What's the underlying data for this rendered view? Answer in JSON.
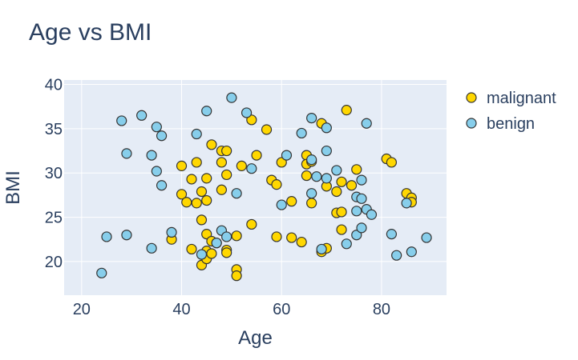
{
  "chart_data": {
    "type": "scatter",
    "title": "Age vs BMI",
    "xlabel": "Age",
    "ylabel": "BMI",
    "xlim": [
      16.5,
      93
    ],
    "ylim": [
      16.2,
      40.5
    ],
    "xticks": [
      20,
      40,
      60,
      80
    ],
    "yticks": [
      20,
      25,
      30,
      35,
      40
    ],
    "grid": true,
    "legend_position": "right",
    "series": [
      {
        "name": "malignant",
        "color": "#ffd700",
        "points": [
          [
            38,
            22.5
          ],
          [
            40,
            27.6
          ],
          [
            40,
            30.8
          ],
          [
            41,
            26.7
          ],
          [
            42,
            29.3
          ],
          [
            42,
            21.4
          ],
          [
            43,
            31.2
          ],
          [
            43,
            26.6
          ],
          [
            44,
            27.9
          ],
          [
            44,
            24.7
          ],
          [
            44,
            19.6
          ],
          [
            45,
            29.4
          ],
          [
            45,
            26.9
          ],
          [
            45,
            23.1
          ],
          [
            45,
            21.2
          ],
          [
            45,
            20.3
          ],
          [
            46,
            33.2
          ],
          [
            46,
            22.3
          ],
          [
            46,
            20.9
          ],
          [
            47,
            22.1
          ],
          [
            48,
            32.5
          ],
          [
            48,
            31.2
          ],
          [
            48,
            28.1
          ],
          [
            49,
            32.5
          ],
          [
            49,
            29.8
          ],
          [
            49,
            21.3
          ],
          [
            49,
            21.0
          ],
          [
            51,
            22.9
          ],
          [
            51,
            19.1
          ],
          [
            51,
            18.4
          ],
          [
            52,
            30.8
          ],
          [
            54,
            36.0
          ],
          [
            54,
            24.2
          ],
          [
            55,
            32.0
          ],
          [
            57,
            34.9
          ],
          [
            58,
            29.2
          ],
          [
            59,
            28.7
          ],
          [
            59,
            22.8
          ],
          [
            60,
            31.2
          ],
          [
            62,
            26.8
          ],
          [
            62,
            22.7
          ],
          [
            64,
            22.2
          ],
          [
            65,
            32.0
          ],
          [
            65,
            31.0
          ],
          [
            65,
            29.7
          ],
          [
            66,
            31.3
          ],
          [
            66,
            26.6
          ],
          [
            68,
            35.6
          ],
          [
            68,
            21.1
          ],
          [
            69,
            28.5
          ],
          [
            69,
            21.5
          ],
          [
            71,
            27.9
          ],
          [
            71,
            25.5
          ],
          [
            72,
            29.0
          ],
          [
            72,
            25.6
          ],
          [
            72,
            23.6
          ],
          [
            73,
            37.1
          ],
          [
            74,
            28.6
          ],
          [
            75,
            30.4
          ],
          [
            81,
            31.6
          ],
          [
            82,
            31.2
          ],
          [
            85,
            27.7
          ],
          [
            86,
            27.2
          ],
          [
            86,
            26.7
          ]
        ]
      },
      {
        "name": "benign",
        "color": "#87ceeb",
        "points": [
          [
            24,
            18.7
          ],
          [
            25,
            22.8
          ],
          [
            28,
            35.9
          ],
          [
            29,
            32.2
          ],
          [
            29,
            23.0
          ],
          [
            32,
            36.5
          ],
          [
            34,
            32.0
          ],
          [
            34,
            21.5
          ],
          [
            35,
            35.2
          ],
          [
            35,
            30.2
          ],
          [
            36,
            34.2
          ],
          [
            36,
            28.6
          ],
          [
            38,
            23.3
          ],
          [
            43,
            34.4
          ],
          [
            44,
            20.8
          ],
          [
            45,
            37.0
          ],
          [
            47,
            22.1
          ],
          [
            48,
            23.5
          ],
          [
            49,
            22.8
          ],
          [
            50,
            38.5
          ],
          [
            51,
            27.7
          ],
          [
            53,
            36.8
          ],
          [
            54,
            30.5
          ],
          [
            60,
            26.4
          ],
          [
            61,
            32.0
          ],
          [
            64,
            34.5
          ],
          [
            66,
            36.2
          ],
          [
            66,
            31.5
          ],
          [
            66,
            27.7
          ],
          [
            67,
            29.6
          ],
          [
            68,
            21.4
          ],
          [
            69,
            35.1
          ],
          [
            69,
            32.5
          ],
          [
            69,
            29.4
          ],
          [
            71,
            30.3
          ],
          [
            73,
            22.0
          ],
          [
            75,
            27.3
          ],
          [
            75,
            25.7
          ],
          [
            75,
            23.0
          ],
          [
            76,
            29.2
          ],
          [
            76,
            27.1
          ],
          [
            76,
            23.8
          ],
          [
            77,
            35.6
          ],
          [
            77,
            25.9
          ],
          [
            78,
            25.3
          ],
          [
            82,
            23.1
          ],
          [
            83,
            20.7
          ],
          [
            85,
            26.6
          ],
          [
            86,
            21.1
          ],
          [
            89,
            22.7
          ]
        ]
      }
    ]
  }
}
